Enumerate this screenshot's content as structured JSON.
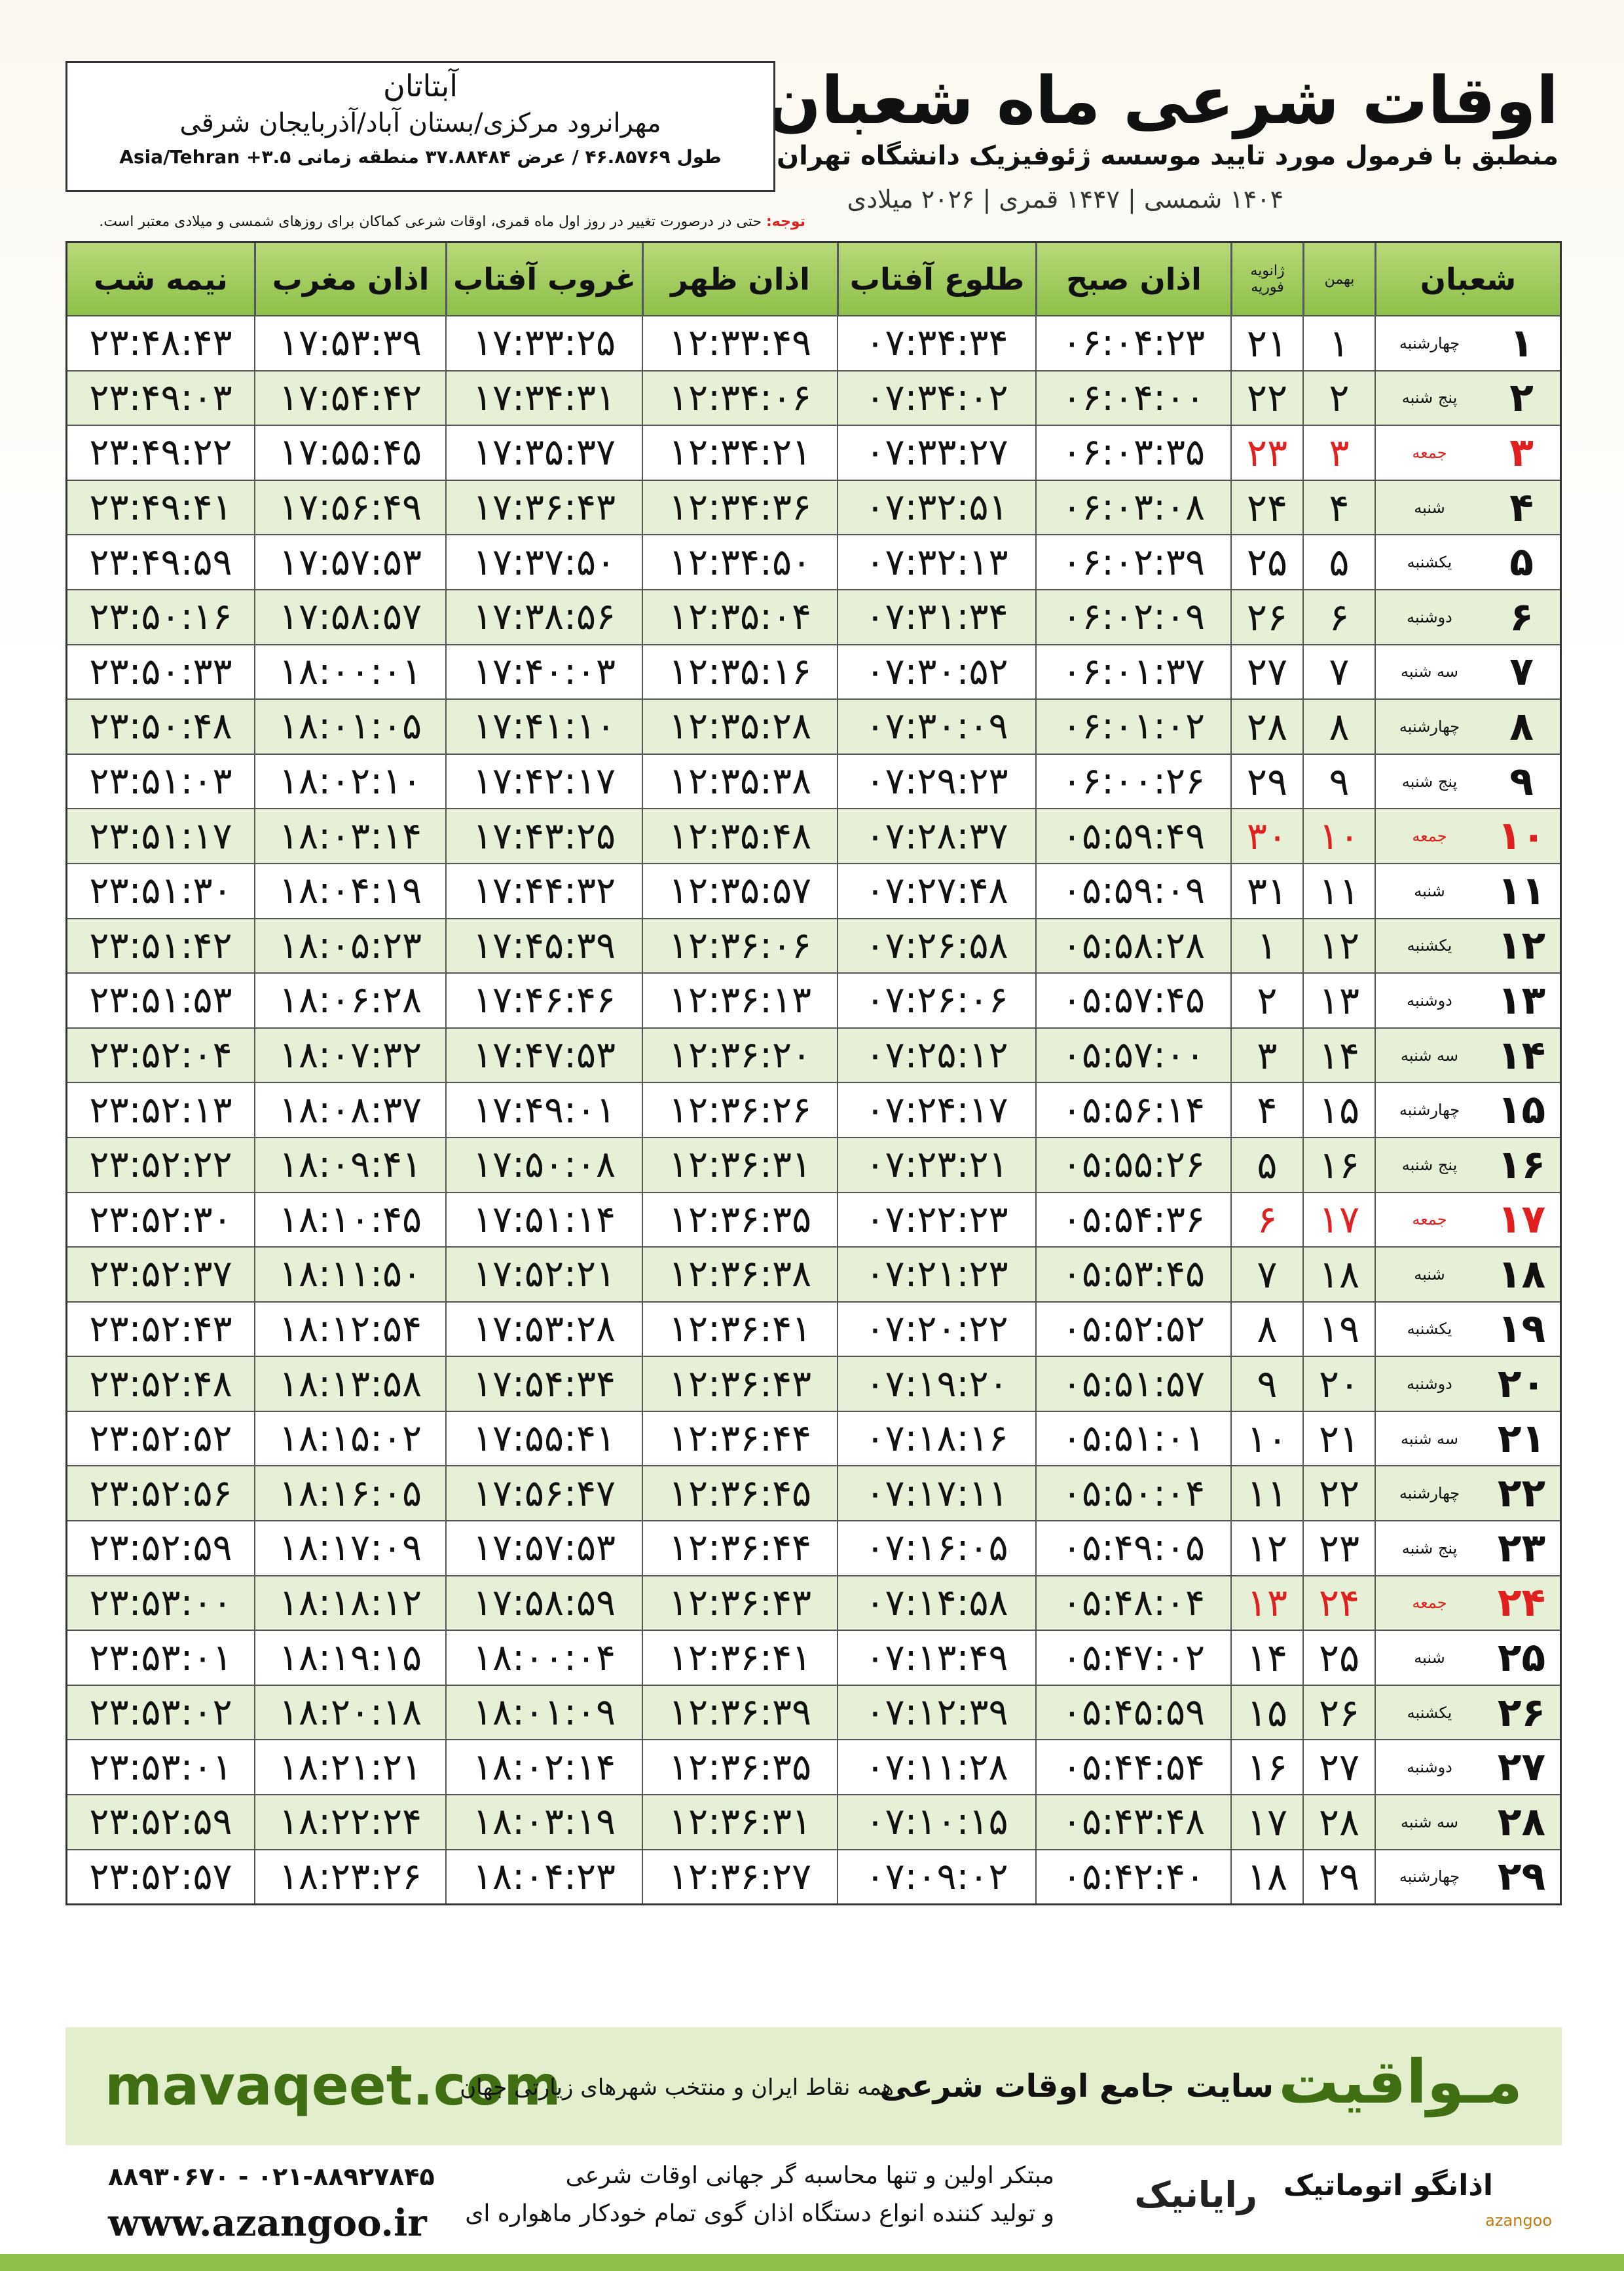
{
  "header": {
    "title": "اوقات شرعی ماه شعبان",
    "subtitle": "منطبق با فرمول مورد تایید موسسه ژئوفیزیک دانشگاه تهران",
    "calendar": "۱۴۰۴ شمسی | ۱۴۴۷ قمری | ۲۰۲۶ میلادی"
  },
  "location": {
    "name": "آبتاتان",
    "region": "مهرانرود مرکزی/بستان آباد/آذربایجان شرقی",
    "coordinates": "طول ۴۶.۸۵۷۶۹ / عرض ۳۷.۸۸۴۸۴ منطقه زمانی ۳.۵+ Asia/Tehran"
  },
  "note": {
    "label": "توجه:",
    "text": "حتی در درصورت تغییر در روز اول ماه قمری، اوقات شرعی کماکان برای روزهای شمسی و میلادی معتبر است."
  },
  "table": {
    "columns": [
      "شعبان",
      "بهمن",
      "ژانویه",
      "فوریه",
      "اذان صبح",
      "طلوع آفتاب",
      "اذان ظهر",
      "غروب آفتاب",
      "اذان مغرب",
      "نیمه شب"
    ],
    "rows": [
      [
        "۱",
        "چهارشنبه",
        "۱",
        "۲۱",
        "۰۶:۰۴:۲۳",
        "۰۷:۳۴:۳۴",
        "۱۲:۳۳:۴۹",
        "۱۷:۳۳:۲۵",
        "۱۷:۵۳:۳۹",
        "۲۳:۴۸:۴۳"
      ],
      [
        "۲",
        "پنج شنبه",
        "۲",
        "۲۲",
        "۰۶:۰۴:۰۰",
        "۰۷:۳۴:۰۲",
        "۱۲:۳۴:۰۶",
        "۱۷:۳۴:۳۱",
        "۱۷:۵۴:۴۲",
        "۲۳:۴۹:۰۳"
      ],
      [
        "۳",
        "جمعه",
        "۳",
        "۲۳",
        "۰۶:۰۳:۳۵",
        "۰۷:۳۳:۲۷",
        "۱۲:۳۴:۲۱",
        "۱۷:۳۵:۳۷",
        "۱۷:۵۵:۴۵",
        "۲۳:۴۹:۲۲"
      ],
      [
        "۴",
        "شنبه",
        "۴",
        "۲۴",
        "۰۶:۰۳:۰۸",
        "۰۷:۳۲:۵۱",
        "۱۲:۳۴:۳۶",
        "۱۷:۳۶:۴۳",
        "۱۷:۵۶:۴۹",
        "۲۳:۴۹:۴۱"
      ],
      [
        "۵",
        "یکشنبه",
        "۵",
        "۲۵",
        "۰۶:۰۲:۳۹",
        "۰۷:۳۲:۱۳",
        "۱۲:۳۴:۵۰",
        "۱۷:۳۷:۵۰",
        "۱۷:۵۷:۵۳",
        "۲۳:۴۹:۵۹"
      ],
      [
        "۶",
        "دوشنبه",
        "۶",
        "۲۶",
        "۰۶:۰۲:۰۹",
        "۰۷:۳۱:۳۴",
        "۱۲:۳۵:۰۴",
        "۱۷:۳۸:۵۶",
        "۱۷:۵۸:۵۷",
        "۲۳:۵۰:۱۶"
      ],
      [
        "۷",
        "سه شنبه",
        "۷",
        "۲۷",
        "۰۶:۰۱:۳۷",
        "۰۷:۳۰:۵۲",
        "۱۲:۳۵:۱۶",
        "۱۷:۴۰:۰۳",
        "۱۸:۰۰:۰۱",
        "۲۳:۵۰:۳۳"
      ],
      [
        "۸",
        "چهارشنبه",
        "۸",
        "۲۸",
        "۰۶:۰۱:۰۲",
        "۰۷:۳۰:۰۹",
        "۱۲:۳۵:۲۸",
        "۱۷:۴۱:۱۰",
        "۱۸:۰۱:۰۵",
        "۲۳:۵۰:۴۸"
      ],
      [
        "۹",
        "پنج شنبه",
        "۹",
        "۲۹",
        "۰۶:۰۰:۲۶",
        "۰۷:۲۹:۲۳",
        "۱۲:۳۵:۳۸",
        "۱۷:۴۲:۱۷",
        "۱۸:۰۲:۱۰",
        "۲۳:۵۱:۰۳"
      ],
      [
        "۱۰",
        "جمعه",
        "۱۰",
        "۳۰",
        "۰۵:۵۹:۴۹",
        "۰۷:۲۸:۳۷",
        "۱۲:۳۵:۴۸",
        "۱۷:۴۳:۲۵",
        "۱۸:۰۳:۱۴",
        "۲۳:۵۱:۱۷"
      ],
      [
        "۱۱",
        "شنبه",
        "۱۱",
        "۳۱",
        "۰۵:۵۹:۰۹",
        "۰۷:۲۷:۴۸",
        "۱۲:۳۵:۵۷",
        "۱۷:۴۴:۳۲",
        "۱۸:۰۴:۱۹",
        "۲۳:۵۱:۳۰"
      ],
      [
        "۱۲",
        "یکشنبه",
        "۱۲",
        "۱",
        "۰۵:۵۸:۲۸",
        "۰۷:۲۶:۵۸",
        "۱۲:۳۶:۰۶",
        "۱۷:۴۵:۳۹",
        "۱۸:۰۵:۲۳",
        "۲۳:۵۱:۴۲"
      ],
      [
        "۱۳",
        "دوشنبه",
        "۱۳",
        "۲",
        "۰۵:۵۷:۴۵",
        "۰۷:۲۶:۰۶",
        "۱۲:۳۶:۱۳",
        "۱۷:۴۶:۴۶",
        "۱۸:۰۶:۲۸",
        "۲۳:۵۱:۵۳"
      ],
      [
        "۱۴",
        "سه شنبه",
        "۱۴",
        "۳",
        "۰۵:۵۷:۰۰",
        "۰۷:۲۵:۱۲",
        "۱۲:۳۶:۲۰",
        "۱۷:۴۷:۵۳",
        "۱۸:۰۷:۳۲",
        "۲۳:۵۲:۰۴"
      ],
      [
        "۱۵",
        "چهارشنبه",
        "۱۵",
        "۴",
        "۰۵:۵۶:۱۴",
        "۰۷:۲۴:۱۷",
        "۱۲:۳۶:۲۶",
        "۱۷:۴۹:۰۱",
        "۱۸:۰۸:۳۷",
        "۲۳:۵۲:۱۳"
      ],
      [
        "۱۶",
        "پنج شنبه",
        "۱۶",
        "۵",
        "۰۵:۵۵:۲۶",
        "۰۷:۲۳:۲۱",
        "۱۲:۳۶:۳۱",
        "۱۷:۵۰:۰۸",
        "۱۸:۰۹:۴۱",
        "۲۳:۵۲:۲۲"
      ],
      [
        "۱۷",
        "جمعه",
        "۱۷",
        "۶",
        "۰۵:۵۴:۳۶",
        "۰۷:۲۲:۲۳",
        "۱۲:۳۶:۳۵",
        "۱۷:۵۱:۱۴",
        "۱۸:۱۰:۴۵",
        "۲۳:۵۲:۳۰"
      ],
      [
        "۱۸",
        "شنبه",
        "۱۸",
        "۷",
        "۰۵:۵۳:۴۵",
        "۰۷:۲۱:۲۳",
        "۱۲:۳۶:۳۸",
        "۱۷:۵۲:۲۱",
        "۱۸:۱۱:۵۰",
        "۲۳:۵۲:۳۷"
      ],
      [
        "۱۹",
        "یکشنبه",
        "۱۹",
        "۸",
        "۰۵:۵۲:۵۲",
        "۰۷:۲۰:۲۲",
        "۱۲:۳۶:۴۱",
        "۱۷:۵۳:۲۸",
        "۱۸:۱۲:۵۴",
        "۲۳:۵۲:۴۳"
      ],
      [
        "۲۰",
        "دوشنبه",
        "۲۰",
        "۹",
        "۰۵:۵۱:۵۷",
        "۰۷:۱۹:۲۰",
        "۱۲:۳۶:۴۳",
        "۱۷:۵۴:۳۴",
        "۱۸:۱۳:۵۸",
        "۲۳:۵۲:۴۸"
      ],
      [
        "۲۱",
        "سه شنبه",
        "۲۱",
        "۱۰",
        "۰۵:۵۱:۰۱",
        "۰۷:۱۸:۱۶",
        "۱۲:۳۶:۴۴",
        "۱۷:۵۵:۴۱",
        "۱۸:۱۵:۰۲",
        "۲۳:۵۲:۵۲"
      ],
      [
        "۲۲",
        "چهارشنبه",
        "۲۲",
        "۱۱",
        "۰۵:۵۰:۰۴",
        "۰۷:۱۷:۱۱",
        "۱۲:۳۶:۴۵",
        "۱۷:۵۶:۴۷",
        "۱۸:۱۶:۰۵",
        "۲۳:۵۲:۵۶"
      ],
      [
        "۲۳",
        "پنج شنبه",
        "۲۳",
        "۱۲",
        "۰۵:۴۹:۰۵",
        "۰۷:۱۶:۰۵",
        "۱۲:۳۶:۴۴",
        "۱۷:۵۷:۵۳",
        "۱۸:۱۷:۰۹",
        "۲۳:۵۲:۵۹"
      ],
      [
        "۲۴",
        "جمعه",
        "۲۴",
        "۱۳",
        "۰۵:۴۸:۰۴",
        "۰۷:۱۴:۵۸",
        "۱۲:۳۶:۴۳",
        "۱۷:۵۸:۵۹",
        "۱۸:۱۸:۱۲",
        "۲۳:۵۳:۰۰"
      ],
      [
        "۲۵",
        "شنبه",
        "۲۵",
        "۱۴",
        "۰۵:۴۷:۰۲",
        "۰۷:۱۳:۴۹",
        "۱۲:۳۶:۴۱",
        "۱۸:۰۰:۰۴",
        "۱۸:۱۹:۱۵",
        "۲۳:۵۳:۰۱"
      ],
      [
        "۲۶",
        "یکشنبه",
        "۲۶",
        "۱۵",
        "۰۵:۴۵:۵۹",
        "۰۷:۱۲:۳۹",
        "۱۲:۳۶:۳۹",
        "۱۸:۰۱:۰۹",
        "۱۸:۲۰:۱۸",
        "۲۳:۵۳:۰۲"
      ],
      [
        "۲۷",
        "دوشنبه",
        "۲۷",
        "۱۶",
        "۰۵:۴۴:۵۴",
        "۰۷:۱۱:۲۸",
        "۱۲:۳۶:۳۵",
        "۱۸:۰۲:۱۴",
        "۱۸:۲۱:۲۱",
        "۲۳:۵۳:۰۱"
      ],
      [
        "۲۸",
        "سه شنبه",
        "۲۸",
        "۱۷",
        "۰۵:۴۳:۴۸",
        "۰۷:۱۰:۱۵",
        "۱۲:۳۶:۳۱",
        "۱۸:۰۳:۱۹",
        "۱۸:۲۲:۲۴",
        "۲۳:۵۲:۵۹"
      ],
      [
        "۲۹",
        "چهارشنبه",
        "۲۹",
        "۱۸",
        "۰۵:۴۲:۴۰",
        "۰۷:۰۹:۰۲",
        "۱۲:۳۶:۲۷",
        "۱۸:۰۴:۲۳",
        "۱۸:۲۳:۲۶",
        "۲۳:۵۲:۵۷"
      ]
    ]
  },
  "banner": {
    "site": "mavaqeet.com",
    "brand": "مـواقیت",
    "tagline": "سایت جامع اوقات شرعی",
    "coverage": "همه نقاط ایران و منتخب شهرهای زیارتی جهان"
  },
  "footer": {
    "phone": "۰۲۱-۸۸۹۲۷۸۴۵ - ۸۸۹۳۰۶۷۰",
    "web": "www.azangoo.ir",
    "line1": "مبتکر اولین و تنها محاسبه گر جهانی اوقات شرعی",
    "line2": "و تولید کننده انواع دستگاه اذان گوی تمام خودکار ماهواره ای",
    "logo1": "رایانیک",
    "logo2": "اذانگو اتوماتیک",
    "logo3": "azangoo"
  }
}
